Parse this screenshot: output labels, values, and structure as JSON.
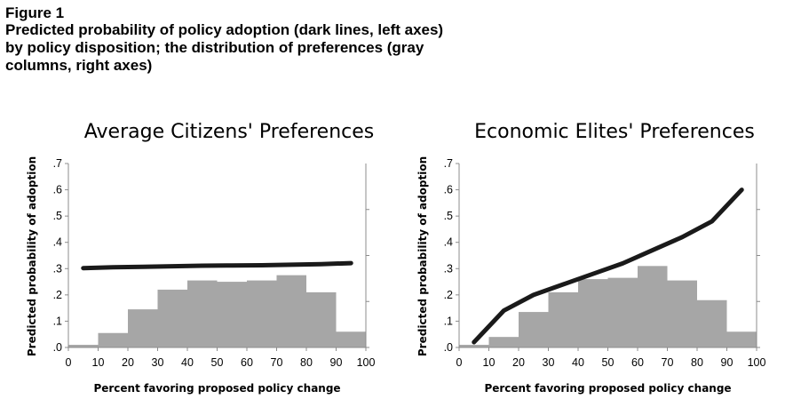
{
  "figure": {
    "label": "Figure 1",
    "caption": "Predicted probability of policy adoption (dark lines, left axes) by policy disposition; the distribution of preferences (gray columns, right axes)"
  },
  "colors": {
    "line": "#1a1a1a",
    "bars": "#a6a6a6",
    "axis": "#8c8c8c"
  },
  "chart_data": [
    {
      "type": "bar+line",
      "title": "Average Citizens' Preferences",
      "xlabel": "Percent favoring proposed policy change",
      "ylabel": "Predicted probability of adoption",
      "xlim": [
        0,
        100
      ],
      "ylim": [
        0,
        0.7
      ],
      "x_ticks": [
        "0",
        "10",
        "20",
        "30",
        "40",
        "50",
        "60",
        "70",
        "80",
        "90",
        "100"
      ],
      "y_ticks": [
        ".0",
        ".1",
        ".2",
        ".3",
        ".4",
        ".5",
        ".6",
        ".7"
      ],
      "bars": {
        "bin_edges": [
          0,
          10,
          20,
          30,
          40,
          50,
          60,
          70,
          80,
          90,
          100
        ],
        "heights": [
          0.01,
          0.055,
          0.145,
          0.22,
          0.255,
          0.25,
          0.255,
          0.275,
          0.21,
          0.06
        ]
      },
      "line": {
        "x": [
          5,
          15,
          25,
          35,
          45,
          55,
          65,
          75,
          85,
          95
        ],
        "y": [
          0.302,
          0.305,
          0.307,
          0.309,
          0.311,
          0.312,
          0.313,
          0.315,
          0.317,
          0.321
        ]
      }
    },
    {
      "type": "bar+line",
      "title": "Economic Elites' Preferences",
      "xlabel": "Percent favoring proposed policy change",
      "ylabel": "Predicted probability of adoption",
      "xlim": [
        0,
        100
      ],
      "ylim": [
        0,
        0.7
      ],
      "x_ticks": [
        "0",
        "10",
        "20",
        "30",
        "40",
        "50",
        "60",
        "70",
        "80",
        "90",
        "100"
      ],
      "y_ticks": [
        ".0",
        ".1",
        ".2",
        ".3",
        ".4",
        ".5",
        ".6",
        ".7"
      ],
      "bars": {
        "bin_edges": [
          0,
          10,
          20,
          30,
          40,
          50,
          60,
          70,
          80,
          90,
          100
        ],
        "heights": [
          0.01,
          0.04,
          0.135,
          0.21,
          0.26,
          0.265,
          0.31,
          0.255,
          0.18,
          0.06
        ]
      },
      "line": {
        "x": [
          5,
          15,
          25,
          35,
          45,
          55,
          65,
          75,
          85,
          95
        ],
        "y": [
          0.02,
          0.14,
          0.2,
          0.24,
          0.28,
          0.32,
          0.37,
          0.42,
          0.48,
          0.6
        ]
      }
    }
  ]
}
